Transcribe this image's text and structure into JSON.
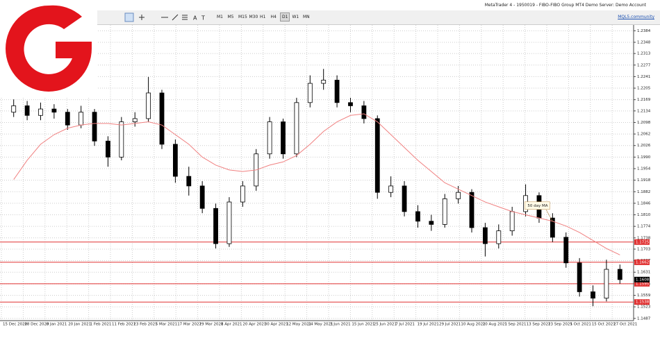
{
  "window": {
    "title": "MetaTrader 4 - 1950019 - FIBO-FIBO Group MT4 Demo Server: Demo Account",
    "link": "MQL5.community"
  },
  "toolbar": {
    "timeframes": [
      "M1",
      "M5",
      "M15",
      "M30",
      "H1",
      "H4",
      "D1",
      "W1",
      "MN"
    ],
    "active": "D1"
  },
  "chart_data": {
    "type": "candlestick",
    "ohlc": [
      [
        1.213,
        1.217,
        1.2115,
        1.215
      ],
      [
        1.215,
        1.2165,
        1.2105,
        1.212
      ],
      [
        1.212,
        1.216,
        1.2105,
        1.214
      ],
      [
        1.214,
        1.2155,
        1.211,
        1.213
      ],
      [
        1.213,
        1.214,
        1.2075,
        1.209
      ],
      [
        1.209,
        1.215,
        1.208,
        1.213
      ],
      [
        1.213,
        1.214,
        1.2025,
        1.204
      ],
      [
        1.204,
        1.2055,
        1.196,
        1.199
      ],
      [
        1.199,
        1.2115,
        1.198,
        1.21
      ],
      [
        1.21,
        1.213,
        1.2085,
        1.211
      ],
      [
        1.211,
        1.224,
        1.21,
        1.219
      ],
      [
        1.219,
        1.22,
        1.2015,
        1.203
      ],
      [
        1.203,
        1.2045,
        1.191,
        1.193
      ],
      [
        1.193,
        1.196,
        1.187,
        1.19
      ],
      [
        1.19,
        1.1915,
        1.1815,
        1.183
      ],
      [
        1.183,
        1.1845,
        1.1705,
        1.172
      ],
      [
        1.172,
        1.1865,
        1.171,
        1.185
      ],
      [
        1.185,
        1.1915,
        1.1835,
        1.19
      ],
      [
        1.19,
        1.2015,
        1.1885,
        1.2
      ],
      [
        1.2,
        1.2115,
        1.1985,
        1.21
      ],
      [
        1.21,
        1.211,
        1.1985,
        1.2
      ],
      [
        1.2,
        1.2175,
        1.199,
        1.216
      ],
      [
        1.216,
        1.2245,
        1.2145,
        1.222
      ],
      [
        1.222,
        1.2265,
        1.22,
        1.223
      ],
      [
        1.223,
        1.2245,
        1.2145,
        1.216
      ],
      [
        1.216,
        1.2175,
        1.213,
        1.215
      ],
      [
        1.215,
        1.2165,
        1.2095,
        1.211
      ],
      [
        1.211,
        1.212,
        1.186,
        1.188
      ],
      [
        1.188,
        1.193,
        1.1865,
        1.19
      ],
      [
        1.19,
        1.1915,
        1.1805,
        1.182
      ],
      [
        1.182,
        1.184,
        1.177,
        1.179
      ],
      [
        1.179,
        1.181,
        1.176,
        1.178
      ],
      [
        1.178,
        1.1875,
        1.177,
        1.186
      ],
      [
        1.186,
        1.19,
        1.1845,
        1.188
      ],
      [
        1.188,
        1.189,
        1.1755,
        1.177
      ],
      [
        1.177,
        1.1785,
        1.168,
        1.172
      ],
      [
        1.172,
        1.178,
        1.1705,
        1.176
      ],
      [
        1.176,
        1.1835,
        1.1745,
        1.182
      ],
      [
        1.182,
        1.1905,
        1.1805,
        1.187
      ],
      [
        1.187,
        1.188,
        1.1785,
        1.18
      ],
      [
        1.18,
        1.1815,
        1.1725,
        1.174
      ],
      [
        1.174,
        1.1755,
        1.1645,
        1.166
      ],
      [
        1.166,
        1.1675,
        1.1555,
        1.157
      ],
      [
        1.157,
        1.159,
        1.1525,
        1.155
      ],
      [
        1.155,
        1.167,
        1.154,
        1.164
      ],
      [
        1.164,
        1.1655,
        1.1595,
        1.1608
      ]
    ],
    "series": [
      {
        "name": "50 day MA",
        "color": "#f08080",
        "values": [
          1.192,
          1.198,
          1.203,
          1.206,
          1.208,
          1.209,
          1.2095,
          1.2095,
          1.209,
          1.2095,
          1.21,
          1.209,
          1.206,
          1.203,
          1.199,
          1.1965,
          1.195,
          1.1945,
          1.195,
          1.1965,
          1.1975,
          1.1995,
          1.203,
          1.207,
          1.21,
          1.212,
          1.2125,
          1.21,
          1.206,
          1.202,
          1.198,
          1.1945,
          1.191,
          1.189,
          1.187,
          1.185,
          1.1835,
          1.182,
          1.181,
          1.18,
          1.179,
          1.1775,
          1.1755,
          1.173,
          1.1705,
          1.1685
        ]
      }
    ],
    "x_labels": [
      "15 Dec 2020",
      "28 Dec 2020",
      "8 Jan 2021",
      "20 Jan 2021",
      "1 Feb 2021",
      "11 Feb 2021",
      "23 Feb 2021",
      "5 Mar 2021",
      "17 Mar 2021",
      "29 Mar 2021",
      "8 Apr 2021",
      "20 Apr 2021",
      "30 Apr 2021",
      "12 May 2021",
      "24 May 2021",
      "3 Jun 2021",
      "15 Jun 2021",
      "25 Jun 2021",
      "7 Jul 2021",
      "19 Jul 2021",
      "29 Jul 2021",
      "10 Aug 2021",
      "20 Aug 2021",
      "1 Sep 2021",
      "13 Sep 2021",
      "23 Sep 2021",
      "5 Oct 2021",
      "15 Oct 2021",
      "27 Oct 2021"
    ],
    "ylim": [
      1.148,
      1.2402
    ],
    "yticks": [
      1.2384,
      1.2348,
      1.2313,
      1.2277,
      1.2241,
      1.2205,
      1.2169,
      1.2134,
      1.2098,
      1.2062,
      1.2026,
      {
        "value": 1.199,
        "label": "1.1990"
      },
      1.1954,
      1.1918,
      1.1882,
      1.1846,
      {
        "value": 1.181,
        "label": "1.1810"
      },
      1.1774,
      1.1738,
      1.1703,
      1.1667,
      1.1631,
      1.1595,
      1.1559,
      1.1523,
      1.1487
    ],
    "levels": [
      1.1725,
      1.1662,
      1.1595,
      1.1538
    ],
    "level_color": "#e03030",
    "last": 1.1608,
    "grid": true,
    "bull_color": "#ffffff",
    "bear_color": "#000000"
  }
}
